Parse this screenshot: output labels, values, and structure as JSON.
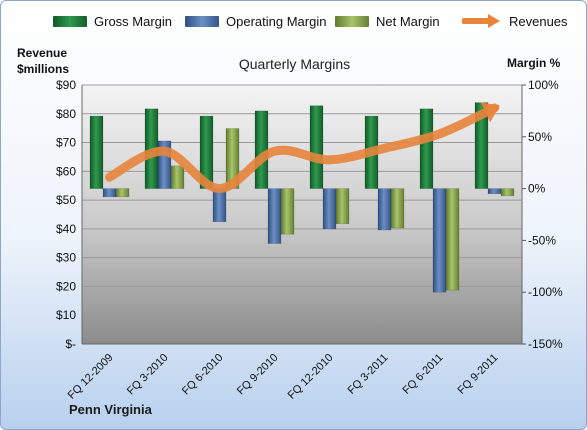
{
  "chart_data": {
    "type": "bar",
    "title": "Quarterly Margins",
    "company": "Penn Virginia",
    "y_left_label": [
      "Revenue",
      "$millions"
    ],
    "y_right_label": "Margin %",
    "y_left_ticks": [
      "$90",
      "$80",
      "$70",
      "$60",
      "$50",
      "$40",
      "$30",
      "$20",
      "$10",
      "$-"
    ],
    "y_right_ticks": [
      "100%",
      "50%",
      "0%",
      "-50%",
      "-100%",
      "-150%"
    ],
    "ylim_left": [
      0,
      90
    ],
    "ylim_right": [
      -150,
      100
    ],
    "legend_position": "top",
    "categories": [
      "FQ 12-2009",
      "FQ 3-2010",
      "FQ 6-2010",
      "FQ 9-2010",
      "FQ 12-2010",
      "FQ 3-2011",
      "FQ 6-2011",
      "FQ 9-2011"
    ],
    "series": [
      {
        "name": "Gross Margin",
        "kind": "bar",
        "axis": "right",
        "color": "#1e7a3c",
        "values": [
          70,
          77,
          70,
          75,
          80,
          70,
          77,
          83
        ]
      },
      {
        "name": "Operating Margin",
        "kind": "bar",
        "axis": "right",
        "color": "#4a6fa5",
        "values": [
          -8,
          46,
          -32,
          -53,
          -39,
          -40,
          -100,
          -5
        ]
      },
      {
        "name": "Net Margin",
        "kind": "bar",
        "axis": "right",
        "color": "#8aa84e",
        "values": [
          -8,
          22,
          58,
          -44,
          -34,
          -38,
          -98,
          -7
        ]
      },
      {
        "name": "Revenues",
        "kind": "line",
        "axis": "left",
        "color": "#e8843c",
        "values": [
          58,
          67,
          54,
          67,
          64,
          68,
          73,
          82
        ]
      }
    ]
  }
}
